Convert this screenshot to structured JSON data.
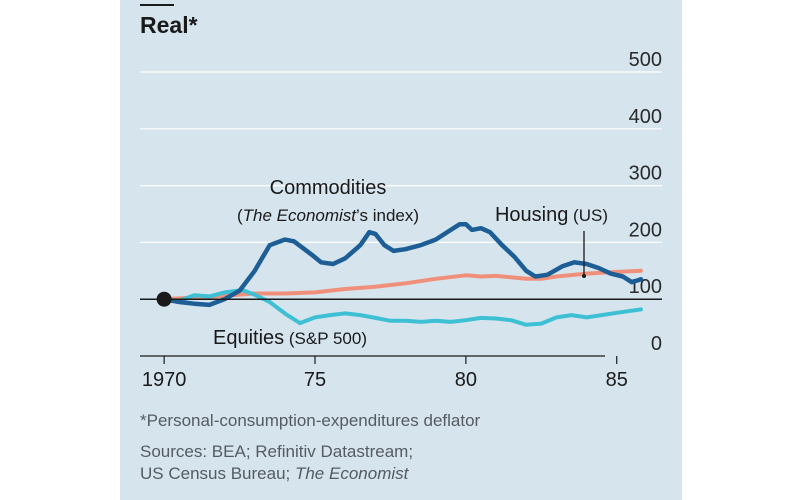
{
  "title": "Real*",
  "footnote": "*Personal-consumption-expenditures deflator",
  "sources_line1": "Sources: BEA; Refinitiv Datastream;",
  "sources_line2_pre": "US Census Bureau; ",
  "sources_line2_italic": "The Economist",
  "labels": {
    "commodities": "Commodities",
    "commodities_sub_pre": "(",
    "commodities_sub_italic": "The Economist",
    "commodities_sub_post": "’s index)",
    "housing": "Housing",
    "housing_sub": " (US)",
    "equities": "Equities",
    "equities_sub": " (S&P 500)"
  },
  "colors": {
    "background": "#d6e4ee",
    "commodities": "#1d5e96",
    "housing": "#f0907a",
    "equities": "#3ec0d4",
    "baseline": "#1a1a1a",
    "grid": "#ffffff"
  },
  "chart_data": {
    "type": "line",
    "xlim": [
      1969.2,
      1986.5
    ],
    "ylim": [
      0,
      500
    ],
    "y_ticks": [
      0,
      100,
      200,
      300,
      400,
      500
    ],
    "x_ticks": [
      1970,
      1975,
      1980,
      1985
    ],
    "x_tick_labels": [
      "1970",
      "75",
      "80",
      "85"
    ],
    "baseline": 100,
    "start_marker": [
      1970,
      100
    ],
    "series": [
      {
        "name": "Commodities",
        "points": [
          [
            1970,
            100
          ],
          [
            1970.5,
            95
          ],
          [
            1971,
            92
          ],
          [
            1971.5,
            90
          ],
          [
            1972,
            100
          ],
          [
            1972.5,
            115
          ],
          [
            1973,
            150
          ],
          [
            1973.5,
            195
          ],
          [
            1974,
            205
          ],
          [
            1974.3,
            202
          ],
          [
            1974.6,
            190
          ],
          [
            1974.9,
            178
          ],
          [
            1975.2,
            165
          ],
          [
            1975.6,
            162
          ],
          [
            1976,
            172
          ],
          [
            1976.5,
            195
          ],
          [
            1976.8,
            218
          ],
          [
            1977,
            215
          ],
          [
            1977.3,
            195
          ],
          [
            1977.6,
            185
          ],
          [
            1978,
            188
          ],
          [
            1978.5,
            195
          ],
          [
            1979,
            205
          ],
          [
            1979.5,
            222
          ],
          [
            1979.8,
            232
          ],
          [
            1980,
            232
          ],
          [
            1980.2,
            222
          ],
          [
            1980.5,
            225
          ],
          [
            1980.8,
            218
          ],
          [
            1981.2,
            195
          ],
          [
            1981.6,
            175
          ],
          [
            1982,
            150
          ],
          [
            1982.3,
            140
          ],
          [
            1982.7,
            143
          ],
          [
            1983.2,
            158
          ],
          [
            1983.6,
            165
          ],
          [
            1984,
            162
          ],
          [
            1984.4,
            155
          ],
          [
            1984.8,
            145
          ],
          [
            1985.2,
            140
          ],
          [
            1985.5,
            130
          ],
          [
            1985.8,
            135
          ]
        ]
      },
      {
        "name": "Housing",
        "points": [
          [
            1970,
            100
          ],
          [
            1971,
            103
          ],
          [
            1972,
            106
          ],
          [
            1973,
            110
          ],
          [
            1974,
            110
          ],
          [
            1975,
            112
          ],
          [
            1976,
            118
          ],
          [
            1977,
            122
          ],
          [
            1978,
            128
          ],
          [
            1979,
            136
          ],
          [
            1980,
            142
          ],
          [
            1980.5,
            140
          ],
          [
            1981,
            141
          ],
          [
            1982,
            136
          ],
          [
            1982.5,
            136
          ],
          [
            1983,
            140
          ],
          [
            1984,
            145
          ],
          [
            1985,
            148
          ],
          [
            1985.8,
            150
          ]
        ]
      },
      {
        "name": "Equities",
        "points": [
          [
            1970,
            100
          ],
          [
            1970.5,
            97
          ],
          [
            1971,
            107
          ],
          [
            1971.5,
            105
          ],
          [
            1972,
            112
          ],
          [
            1972.6,
            116
          ],
          [
            1973,
            108
          ],
          [
            1973.5,
            95
          ],
          [
            1974,
            75
          ],
          [
            1974.5,
            58
          ],
          [
            1975,
            68
          ],
          [
            1975.5,
            72
          ],
          [
            1976,
            75
          ],
          [
            1976.5,
            72
          ],
          [
            1977,
            67
          ],
          [
            1977.5,
            62
          ],
          [
            1978,
            62
          ],
          [
            1978.5,
            60
          ],
          [
            1979,
            62
          ],
          [
            1979.5,
            60
          ],
          [
            1980,
            63
          ],
          [
            1980.5,
            67
          ],
          [
            1981,
            66
          ],
          [
            1981.5,
            63
          ],
          [
            1982,
            55
          ],
          [
            1982.5,
            57
          ],
          [
            1983,
            68
          ],
          [
            1983.5,
            72
          ],
          [
            1984,
            68
          ],
          [
            1984.5,
            72
          ],
          [
            1985,
            76
          ],
          [
            1985.8,
            82
          ]
        ]
      }
    ]
  }
}
